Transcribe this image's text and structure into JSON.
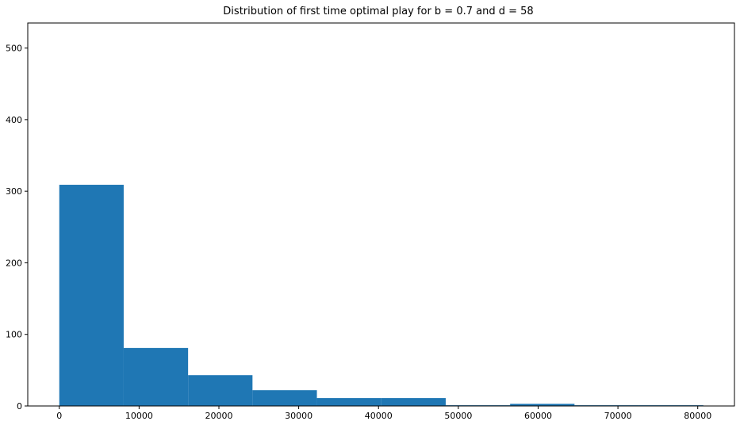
{
  "chart_data": {
    "type": "bar",
    "title": "Distribution of first time optimal play for b = 0.7 and d = 58",
    "xlabel": "",
    "ylabel": "",
    "xlim": [
      -3950,
      84600
    ],
    "ylim": [
      0,
      535
    ],
    "xticks": [
      0,
      10000,
      20000,
      30000,
      40000,
      50000,
      60000,
      70000,
      80000
    ],
    "yticks": [
      0,
      100,
      200,
      300,
      400,
      500
    ],
    "bin_edges": [
      0,
      8070,
      16140,
      24210,
      32280,
      40350,
      48420,
      56490,
      64560,
      72630,
      80700
    ],
    "values": [
      309,
      81,
      43,
      22,
      11,
      11,
      1,
      3,
      1,
      1
    ],
    "color": "#1f77b4",
    "grid": false
  }
}
